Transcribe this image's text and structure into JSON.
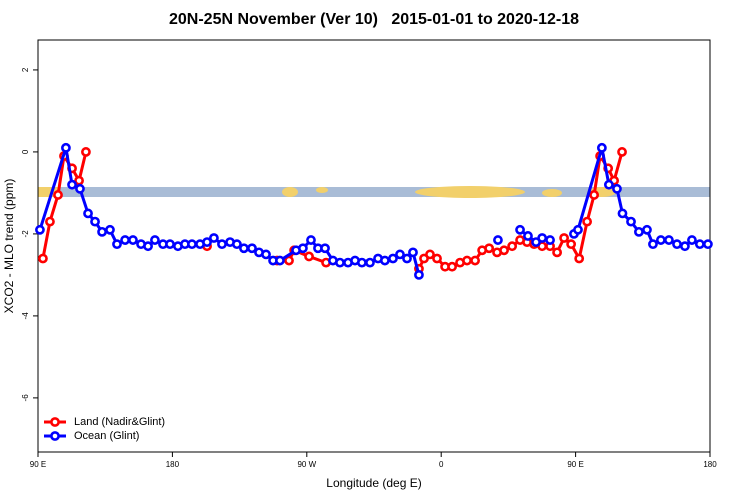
{
  "chart_data": {
    "type": "line",
    "title": "20N-25N November (Ver 10)   2015-01-01 to 2020-12-18",
    "xlabel": "Longitude (deg E)",
    "ylabel": "XCO2 - MLO trend (ppm)",
    "xlim": [
      90,
      540
    ],
    "xticks": [
      {
        "value": 90,
        "label": "90 E"
      },
      180,
      {
        "value": 270,
        "label": "90 W"
      },
      {
        "value": 360,
        "label": "0"
      },
      {
        "value": 450,
        "label": "90 E"
      },
      {
        "value": 540,
        "label": "180"
      }
    ],
    "ylim": [
      -7.32,
      2.73
    ],
    "yticks": [
      2,
      0,
      -2,
      -4,
      -6
    ],
    "grid": false,
    "legend": "bottom-left",
    "series": [
      {
        "name": "Land (Nadir&Glint)",
        "color": "#ff0000",
        "x": [
          93.3,
          98.0,
          103.4,
          107.4,
          112.8,
          117.5,
          122.1,
          null,
          203.2,
          null,
          250.1,
          258.1,
          261.5,
          271.5,
          282.9,
          null,
          345.1,
          348.5,
          352.5,
          357.2,
          362.6,
          367.3,
          372.6,
          377.3,
          382.7,
          387.4,
          392.1,
          397.4,
          402.1,
          407.5,
          412.8,
          417.5,
          422.2,
          427.6,
          432.9,
          437.6,
          442.3,
          447.0,
          452.4,
          457.7,
          462.4,
          466.4,
          471.8,
          475.8,
          481.1
        ],
        "values": [
          -2.6,
          -1.7,
          -1.05,
          -0.1,
          -0.4,
          -0.7,
          0.0,
          null,
          -2.3,
          null,
          -2.65,
          -2.65,
          -2.4,
          -2.55,
          -2.7,
          null,
          -2.85,
          -2.6,
          -2.5,
          -2.6,
          -2.8,
          -2.8,
          -2.7,
          -2.65,
          -2.65,
          -2.4,
          -2.35,
          -2.45,
          -2.4,
          -2.3,
          -2.15,
          -2.2,
          -2.25,
          -2.3,
          -2.3,
          -2.45,
          -2.1,
          -2.25,
          -2.6,
          -1.7,
          -1.05,
          -0.1,
          -0.4,
          -0.7,
          0.0
        ]
      },
      {
        "name": "Ocean (Glint)",
        "color": "#0000ff",
        "x": [
          91.3,
          108.7,
          112.8,
          118.1,
          123.5,
          128.2,
          132.9,
          138.2,
          142.9,
          148.3,
          153.6,
          159.0,
          163.7,
          168.3,
          173.7,
          178.4,
          183.7,
          188.4,
          193.1,
          198.5,
          203.2,
          207.8,
          213.2,
          218.6,
          223.2,
          227.9,
          233.3,
          238.0,
          242.7,
          247.4,
          252.0,
          262.8,
          267.4,
          272.8,
          277.5,
          282.2,
          287.5,
          292.2,
          297.6,
          302.3,
          306.9,
          312.3,
          317.7,
          322.3,
          327.7,
          332.4,
          337.1,
          341.1,
          345.1,
          null,
          398.0,
          null,
          412.8,
          418.1,
          423.5,
          427.6,
          432.9,
          null,
          448.9,
          451.6,
          467.6,
          472.3,
          477.7,
          481.4,
          487.1,
          492.4,
          497.8,
          501.8,
          507.1,
          512.5,
          517.9,
          523.2,
          527.9,
          533.2,
          538.6
        ],
        "values": [
          -1.9,
          0.1,
          -0.8,
          -0.9,
          -1.5,
          -1.7,
          -1.95,
          -1.9,
          -2.25,
          -2.15,
          -2.15,
          -2.25,
          -2.3,
          -2.15,
          -2.25,
          -2.25,
          -2.3,
          -2.25,
          -2.25,
          -2.25,
          -2.2,
          -2.1,
          -2.25,
          -2.2,
          -2.25,
          -2.35,
          -2.35,
          -2.45,
          -2.5,
          -2.65,
          -2.65,
          -2.4,
          -2.35,
          -2.15,
          -2.35,
          -2.35,
          -2.65,
          -2.7,
          -2.7,
          -2.65,
          -2.7,
          -2.7,
          -2.6,
          -2.65,
          -2.6,
          -2.5,
          -2.6,
          -2.45,
          -3.0,
          null,
          -2.15,
          null,
          -1.9,
          -2.05,
          -2.2,
          -2.1,
          -2.15,
          null,
          -2.0,
          -1.9,
          0.1,
          -0.8,
          -0.9,
          -1.5,
          -1.7,
          -1.95,
          -1.9,
          -2.25,
          -2.15,
          -2.15,
          -2.25,
          -2.3,
          -2.15,
          -2.25,
          -2.25
        ]
      }
    ]
  }
}
